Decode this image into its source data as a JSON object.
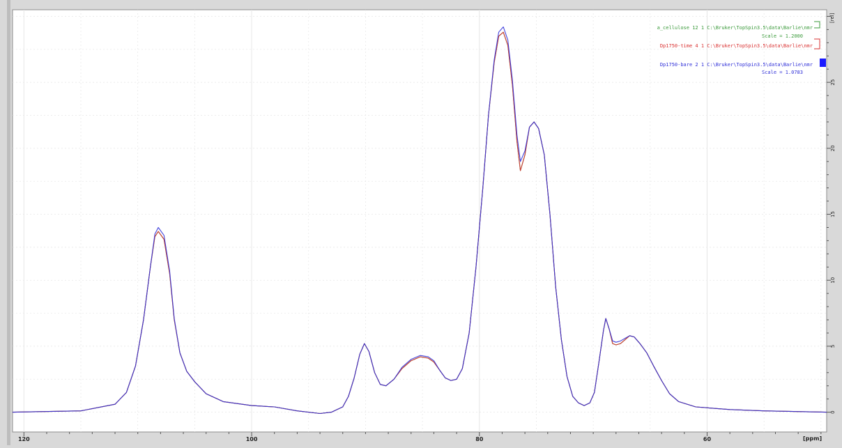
{
  "chart_data": {
    "type": "line",
    "xlabel": "[ppm]",
    "ylabel": "[rel]",
    "xlim": [
      121,
      49.5
    ],
    "ylim": [
      -1.5,
      30.5
    ],
    "x_ticks": [
      120,
      100,
      80,
      60
    ],
    "y_ticks": [
      0,
      5,
      10,
      15,
      20,
      25
    ],
    "grid": true,
    "legend_position": "top-right",
    "series": [
      {
        "name": "a_cellulose 12 1 C:\\Bruker\\TopSpin3.5\\data\\Barlie\\nmr",
        "scale_text": "Scale = 1.2000",
        "color": "#3a9a3a",
        "points": [
          [
            121,
            0
          ],
          [
            115,
            0.1
          ],
          [
            112,
            0.6
          ],
          [
            111,
            1.5
          ],
          [
            110.2,
            3.5
          ],
          [
            109.5,
            7
          ],
          [
            108.9,
            11
          ],
          [
            108.5,
            13.3
          ],
          [
            108.2,
            13.7
          ],
          [
            107.7,
            13.1
          ],
          [
            107.2,
            10.5
          ],
          [
            106.8,
            7
          ],
          [
            106.3,
            4.5
          ],
          [
            105.7,
            3.1
          ],
          [
            105,
            2.3
          ],
          [
            104,
            1.4
          ],
          [
            102.5,
            0.8
          ],
          [
            100,
            0.5
          ],
          [
            98,
            0.4
          ],
          [
            96,
            0.1
          ],
          [
            94,
            -0.1
          ],
          [
            93,
            0
          ],
          [
            92,
            0.4
          ],
          [
            91.5,
            1.2
          ],
          [
            91,
            2.6
          ],
          [
            90.5,
            4.4
          ],
          [
            90.1,
            5.2
          ],
          [
            89.7,
            4.6
          ],
          [
            89.2,
            3
          ],
          [
            88.7,
            2.1
          ],
          [
            88.2,
            2
          ],
          [
            87.5,
            2.5
          ],
          [
            86.8,
            3.3
          ],
          [
            86,
            3.9
          ],
          [
            85.2,
            4.2
          ],
          [
            84.5,
            4.1
          ],
          [
            84,
            3.8
          ],
          [
            83.5,
            3.2
          ],
          [
            83,
            2.6
          ],
          [
            82.5,
            2.4
          ],
          [
            82,
            2.5
          ],
          [
            81.5,
            3.3
          ],
          [
            80.9,
            6
          ],
          [
            80.3,
            11
          ],
          [
            79.7,
            17
          ],
          [
            79.2,
            22.5
          ],
          [
            78.7,
            26.5
          ],
          [
            78.3,
            28.5
          ],
          [
            77.9,
            28.8
          ],
          [
            77.5,
            27.8
          ],
          [
            77.1,
            24.8
          ],
          [
            76.7,
            20.5
          ],
          [
            76.4,
            18.3
          ],
          [
            76,
            19.5
          ],
          [
            75.6,
            21.6
          ],
          [
            75.2,
            22
          ],
          [
            74.8,
            21.5
          ],
          [
            74.3,
            19.5
          ],
          [
            73.8,
            15
          ],
          [
            73.3,
            9.5
          ],
          [
            72.8,
            5.5
          ],
          [
            72.3,
            2.7
          ],
          [
            71.8,
            1.2
          ],
          [
            71.3,
            0.7
          ],
          [
            70.8,
            0.5
          ],
          [
            70.3,
            0.7
          ],
          [
            69.9,
            1.5
          ],
          [
            69.5,
            3.8
          ],
          [
            69.1,
            6.2
          ],
          [
            68.9,
            7.1
          ],
          [
            68.6,
            6.3
          ],
          [
            68.3,
            5.2
          ],
          [
            68,
            5.1
          ],
          [
            67.6,
            5.2
          ],
          [
            67.2,
            5.5
          ],
          [
            66.8,
            5.8
          ],
          [
            66.4,
            5.7
          ],
          [
            65.9,
            5.2
          ],
          [
            65.3,
            4.5
          ],
          [
            64.7,
            3.5
          ],
          [
            64,
            2.4
          ],
          [
            63.3,
            1.4
          ],
          [
            62.5,
            0.8
          ],
          [
            61,
            0.4
          ],
          [
            58,
            0.2
          ],
          [
            55,
            0.1
          ],
          [
            49.5,
            0
          ]
        ]
      },
      {
        "name": "Dp1750-time 4 1 C:\\Bruker\\TopSpin3.5\\data\\Barlie\\nmr",
        "scale_text": "",
        "color": "#d93030",
        "points": [
          [
            121,
            0
          ],
          [
            115,
            0.1
          ],
          [
            112,
            0.6
          ],
          [
            111,
            1.5
          ],
          [
            110.2,
            3.5
          ],
          [
            109.5,
            7
          ],
          [
            108.9,
            11
          ],
          [
            108.5,
            13.3
          ],
          [
            108.2,
            13.7
          ],
          [
            107.7,
            13.1
          ],
          [
            107.2,
            10.5
          ],
          [
            106.8,
            7
          ],
          [
            106.3,
            4.5
          ],
          [
            105.7,
            3.1
          ],
          [
            105,
            2.3
          ],
          [
            104,
            1.4
          ],
          [
            102.5,
            0.8
          ],
          [
            100,
            0.5
          ],
          [
            98,
            0.4
          ],
          [
            96,
            0.1
          ],
          [
            94,
            -0.1
          ],
          [
            93,
            0
          ],
          [
            92,
            0.4
          ],
          [
            91.5,
            1.2
          ],
          [
            91,
            2.6
          ],
          [
            90.5,
            4.4
          ],
          [
            90.1,
            5.2
          ],
          [
            89.7,
            4.6
          ],
          [
            89.2,
            3
          ],
          [
            88.7,
            2.1
          ],
          [
            88.2,
            2
          ],
          [
            87.5,
            2.5
          ],
          [
            86.8,
            3.3
          ],
          [
            86,
            3.9
          ],
          [
            85.2,
            4.2
          ],
          [
            84.5,
            4.1
          ],
          [
            84,
            3.8
          ],
          [
            83.5,
            3.2
          ],
          [
            83,
            2.6
          ],
          [
            82.5,
            2.4
          ],
          [
            82,
            2.5
          ],
          [
            81.5,
            3.3
          ],
          [
            80.9,
            6
          ],
          [
            80.3,
            11
          ],
          [
            79.7,
            17
          ],
          [
            79.2,
            22.5
          ],
          [
            78.7,
            26.5
          ],
          [
            78.3,
            28.5
          ],
          [
            77.9,
            28.8
          ],
          [
            77.5,
            27.8
          ],
          [
            77.1,
            24.8
          ],
          [
            76.7,
            20.5
          ],
          [
            76.4,
            18.3
          ],
          [
            76,
            19.5
          ],
          [
            75.6,
            21.6
          ],
          [
            75.2,
            22
          ],
          [
            74.8,
            21.5
          ],
          [
            74.3,
            19.5
          ],
          [
            73.8,
            15
          ],
          [
            73.3,
            9.5
          ],
          [
            72.8,
            5.5
          ],
          [
            72.3,
            2.7
          ],
          [
            71.8,
            1.2
          ],
          [
            71.3,
            0.7
          ],
          [
            70.8,
            0.5
          ],
          [
            70.3,
            0.7
          ],
          [
            69.9,
            1.5
          ],
          [
            69.5,
            3.8
          ],
          [
            69.1,
            6.2
          ],
          [
            68.9,
            7.1
          ],
          [
            68.6,
            6.3
          ],
          [
            68.3,
            5.2
          ],
          [
            68,
            5.1
          ],
          [
            67.6,
            5.2
          ],
          [
            67.2,
            5.5
          ],
          [
            66.8,
            5.8
          ],
          [
            66.4,
            5.7
          ],
          [
            65.9,
            5.2
          ],
          [
            65.3,
            4.5
          ],
          [
            64.7,
            3.5
          ],
          [
            64,
            2.4
          ],
          [
            63.3,
            1.4
          ],
          [
            62.5,
            0.8
          ],
          [
            61,
            0.4
          ],
          [
            58,
            0.2
          ],
          [
            55,
            0.1
          ],
          [
            49.5,
            0
          ]
        ]
      },
      {
        "name": "Dp1750-bare 2 1 C:\\Bruker\\TopSpin3.5\\data\\Barlie\\nmr",
        "scale_text": "Scale = 1.0783",
        "color": "#2f2fd8",
        "points": [
          [
            121,
            0
          ],
          [
            115,
            0.1
          ],
          [
            112,
            0.6
          ],
          [
            111,
            1.5
          ],
          [
            110.2,
            3.5
          ],
          [
            109.5,
            7
          ],
          [
            108.9,
            11
          ],
          [
            108.5,
            13.5
          ],
          [
            108.2,
            14
          ],
          [
            107.7,
            13.4
          ],
          [
            107.2,
            10.7
          ],
          [
            106.8,
            7.1
          ],
          [
            106.3,
            4.5
          ],
          [
            105.7,
            3.1
          ],
          [
            105,
            2.3
          ],
          [
            104,
            1.4
          ],
          [
            102.5,
            0.8
          ],
          [
            100,
            0.5
          ],
          [
            98,
            0.4
          ],
          [
            96,
            0.1
          ],
          [
            94,
            -0.1
          ],
          [
            93,
            0
          ],
          [
            92,
            0.4
          ],
          [
            91.5,
            1.2
          ],
          [
            91,
            2.6
          ],
          [
            90.5,
            4.4
          ],
          [
            90.1,
            5.2
          ],
          [
            89.7,
            4.6
          ],
          [
            89.2,
            3
          ],
          [
            88.7,
            2.1
          ],
          [
            88.2,
            2
          ],
          [
            87.5,
            2.5
          ],
          [
            86.8,
            3.4
          ],
          [
            86,
            4
          ],
          [
            85.2,
            4.3
          ],
          [
            84.5,
            4.2
          ],
          [
            84,
            3.9
          ],
          [
            83.5,
            3.2
          ],
          [
            83,
            2.6
          ],
          [
            82.5,
            2.4
          ],
          [
            82,
            2.5
          ],
          [
            81.5,
            3.3
          ],
          [
            80.9,
            6
          ],
          [
            80.3,
            11
          ],
          [
            79.7,
            17
          ],
          [
            79.2,
            22.5
          ],
          [
            78.7,
            26.7
          ],
          [
            78.3,
            28.8
          ],
          [
            77.9,
            29.2
          ],
          [
            77.5,
            28.2
          ],
          [
            77.1,
            25.2
          ],
          [
            76.7,
            21
          ],
          [
            76.4,
            19
          ],
          [
            76,
            19.8
          ],
          [
            75.6,
            21.6
          ],
          [
            75.2,
            22
          ],
          [
            74.8,
            21.5
          ],
          [
            74.3,
            19.5
          ],
          [
            73.8,
            15
          ],
          [
            73.3,
            9.5
          ],
          [
            72.8,
            5.5
          ],
          [
            72.3,
            2.7
          ],
          [
            71.8,
            1.2
          ],
          [
            71.3,
            0.7
          ],
          [
            70.8,
            0.5
          ],
          [
            70.3,
            0.7
          ],
          [
            69.9,
            1.5
          ],
          [
            69.5,
            3.8
          ],
          [
            69.1,
            6.2
          ],
          [
            68.9,
            7.1
          ],
          [
            68.6,
            6.3
          ],
          [
            68.3,
            5.4
          ],
          [
            68,
            5.3
          ],
          [
            67.6,
            5.4
          ],
          [
            67.2,
            5.6
          ],
          [
            66.8,
            5.8
          ],
          [
            66.4,
            5.7
          ],
          [
            65.9,
            5.2
          ],
          [
            65.3,
            4.5
          ],
          [
            64.7,
            3.5
          ],
          [
            64,
            2.4
          ],
          [
            63.3,
            1.4
          ],
          [
            62.5,
            0.8
          ],
          [
            61,
            0.4
          ],
          [
            58,
            0.2
          ],
          [
            55,
            0.1
          ],
          [
            49.5,
            0
          ]
        ]
      }
    ]
  }
}
